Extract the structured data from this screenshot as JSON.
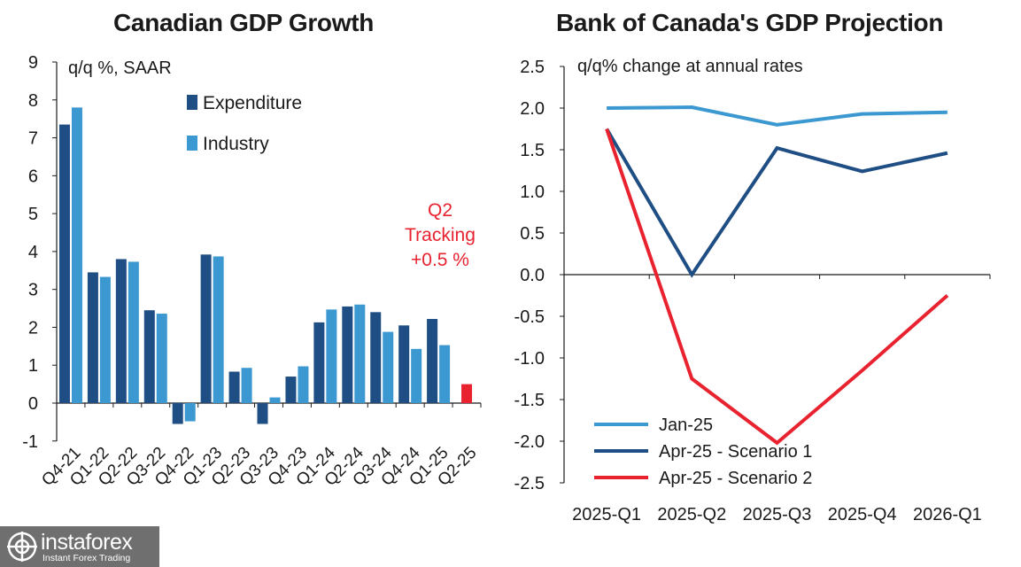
{
  "chart_data": [
    {
      "type": "bar",
      "title": "Canadian GDP Growth",
      "ylabel": "q/q %, SAAR",
      "ylim": [
        -1,
        9
      ],
      "yticks": [
        "-1",
        "0",
        "1",
        "2",
        "3",
        "4",
        "5",
        "6",
        "7",
        "8",
        "9"
      ],
      "categories": [
        "Q4-21",
        "Q1-22",
        "Q2-22",
        "Q3-22",
        "Q4-22",
        "Q1-23",
        "Q2-23",
        "Q3-23",
        "Q4-23",
        "Q1-24",
        "Q2-24",
        "Q3-24",
        "Q4-24",
        "Q1-25",
        "Q2-25"
      ],
      "series": [
        {
          "name": "Expenditure",
          "color": "#1f4e84",
          "values": [
            7.35,
            3.45,
            3.8,
            2.45,
            -0.55,
            3.92,
            0.83,
            -0.55,
            0.7,
            2.13,
            2.55,
            2.4,
            2.05,
            2.22,
            null
          ]
        },
        {
          "name": "Industry",
          "color": "#3c98d0",
          "values": [
            7.8,
            3.33,
            3.73,
            2.36,
            -0.48,
            3.87,
            0.93,
            0.15,
            0.97,
            2.47,
            2.6,
            1.88,
            1.43,
            1.53,
            null
          ]
        },
        {
          "name": "Q2 Tracking",
          "color": "#e8222f",
          "values": [
            null,
            null,
            null,
            null,
            null,
            null,
            null,
            null,
            null,
            null,
            null,
            null,
            null,
            null,
            0.5
          ]
        }
      ],
      "legend": "top-center",
      "annotation": {
        "lines": [
          "Q2",
          "Tracking",
          "+0.5 %"
        ],
        "color": "#e8222f"
      }
    },
    {
      "type": "line",
      "title": "Bank of Canada's GDP Projection",
      "ylabel": "q/q% change at annual rates",
      "ylim": [
        -2.5,
        2.5
      ],
      "yticks": [
        "-2.5",
        "-2.0",
        "-1.5",
        "-1.0",
        "-0.5",
        "0.0",
        "0.5",
        "1.0",
        "1.5",
        "2.0",
        "2.5"
      ],
      "categories": [
        "2025-Q1",
        "2025-Q2",
        "2025-Q3",
        "2025-Q4",
        "2026-Q1"
      ],
      "series": [
        {
          "name": "Jan-25",
          "color": "#3c98d0",
          "values": [
            2.0,
            2.01,
            1.8,
            1.93,
            1.95
          ]
        },
        {
          "name": "Apr-25 - Scenario 1",
          "color": "#1f4e84",
          "values": [
            1.75,
            0.0,
            1.52,
            1.24,
            1.46
          ]
        },
        {
          "name": "Apr-25 - Scenario 2",
          "color": "#e8222f",
          "values": [
            1.75,
            -1.25,
            -2.02,
            -1.15,
            -0.25
          ]
        }
      ],
      "legend": "bottom-left"
    }
  ],
  "watermark": {
    "name": "instaforex",
    "tagline": "Instant Forex Trading"
  }
}
